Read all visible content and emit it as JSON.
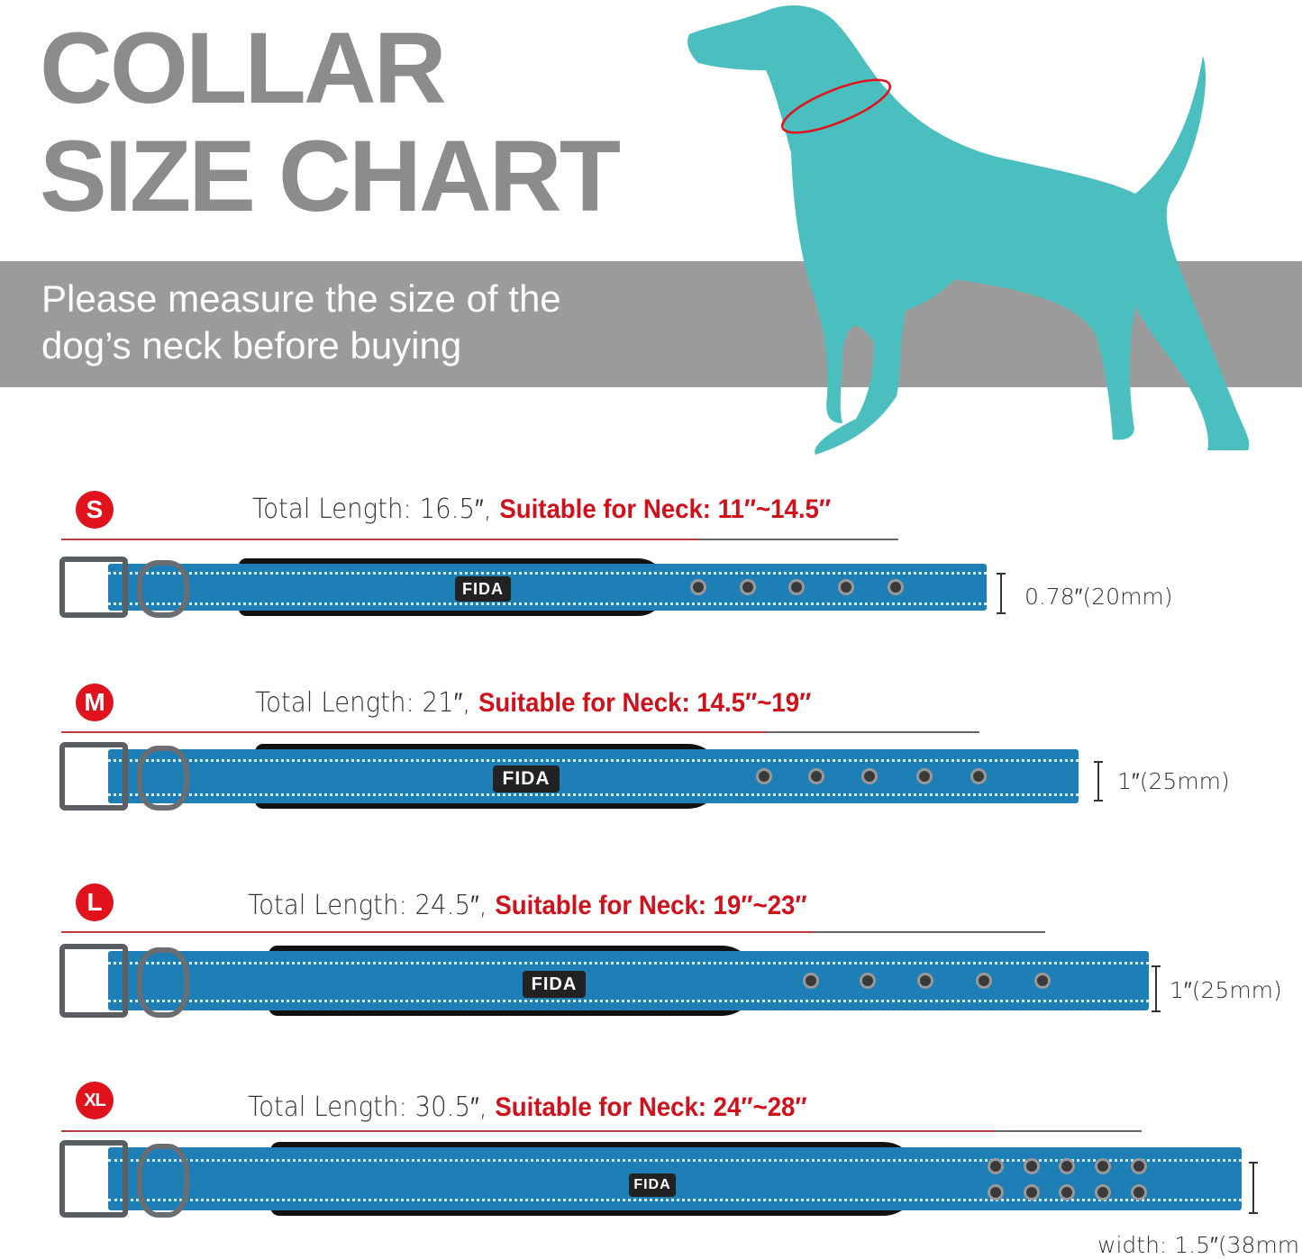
{
  "title": {
    "line1": "COLLAR",
    "line2": "SIZE CHART"
  },
  "banner": {
    "line1": "Please measure the size of the",
    "line2": "dog’s neck before buying"
  },
  "brand_logo": "FIDA",
  "colors": {
    "title": "#8c8c8c",
    "banner": "#9b9b9b",
    "dog": "#4bbfbf",
    "accent_red": "#e0121b",
    "collar_blue": "#1d7fb5"
  },
  "sizes": [
    {
      "size": "S",
      "total_length": "Total Length: 16.5″,",
      "neck": "Suitable for Neck: 11″~14.5″",
      "width": "0.78″(20mm)",
      "holes": 5,
      "hole_rows": 1
    },
    {
      "size": "M",
      "total_length": "Total Length: 21″,",
      "neck": "Suitable for Neck: 14.5″~19″",
      "width": "1″(25mm)",
      "holes": 5,
      "hole_rows": 1
    },
    {
      "size": "L",
      "total_length": "Total Length: 24.5″,",
      "neck": "Suitable for Neck: 19″~23″",
      "width": "1″(25mm)",
      "holes": 5,
      "hole_rows": 1
    },
    {
      "size": "XL",
      "total_length": "Total Length: 30.5″,",
      "neck": "Suitable for Neck: 24″~28″",
      "width": "width: 1.5″(38mm)",
      "holes": 5,
      "hole_rows": 2
    }
  ]
}
